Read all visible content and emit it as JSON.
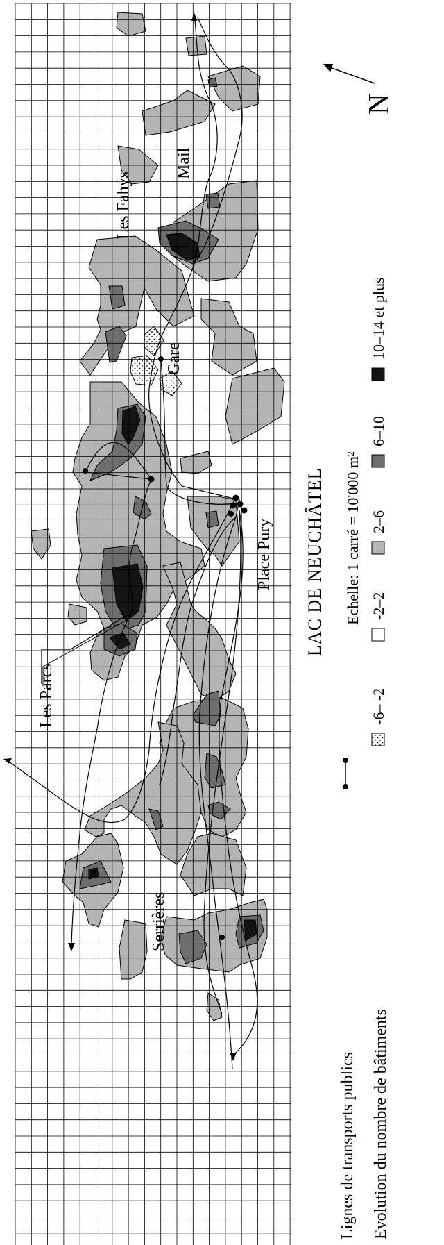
{
  "map": {
    "colors": {
      "class_m6_m2": "#ffffff",
      "class_m2_2": "#ffffff",
      "class_2_6": "#b4b4b4",
      "class_6_10": "#6e6e6e",
      "class_10_14": "#141414",
      "grid": "#000000"
    },
    "places": {
      "les_fahys": "Les Fahys",
      "mail": "Mail",
      "gare": "Gare",
      "place_pury": "Place Pury",
      "les_parcs": "Les Parcs",
      "serrieres": "Serrières"
    },
    "north_letter": "N",
    "lake_title": "LAC DE NEUCHÂTEL",
    "scale": "Echelle: 1 carré = 10'000 m²",
    "legend": {
      "transport": "Lignes de transports publics",
      "evolution": "Evolution du nombre de bâtiments",
      "classes": [
        "-6– -2",
        "-2–2",
        "2–6",
        "6–10",
        "10–14 et plus"
      ]
    }
  }
}
